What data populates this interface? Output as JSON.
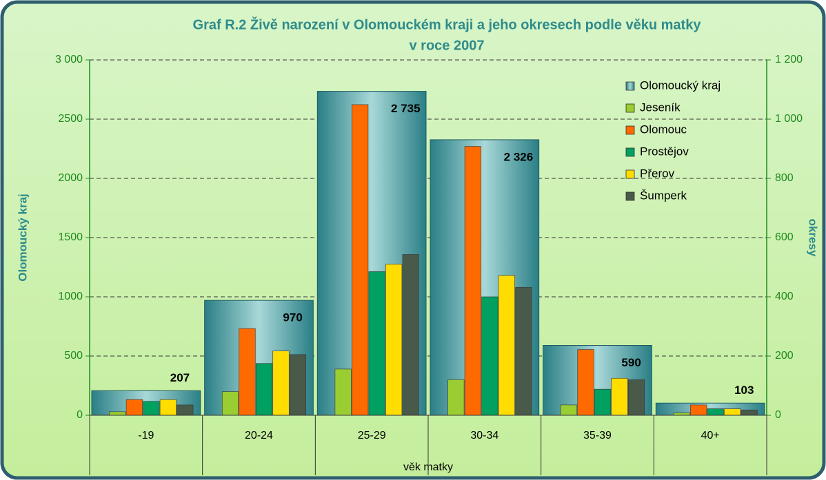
{
  "chart_data": {
    "type": "bar",
    "title": [
      "Graf R.2 Živě narození v Olomouckém kraji a jeho okresech podle věku matky",
      "v roce 2007"
    ],
    "xlabel": "věk matky",
    "ylabel": "Olomoucký kraj",
    "y2label": "okresy",
    "categories": [
      "-19",
      "20-24",
      "25-29",
      "30-34",
      "35-39",
      "40+"
    ],
    "series": [
      {
        "name": "Olomoucký kraj",
        "color": "#2e8b8b",
        "axis": "y",
        "values": [
          207,
          970,
          2735,
          2326,
          590,
          103
        ],
        "value_labels": [
          "207",
          "970",
          "2 735",
          "2 326",
          "590",
          "103"
        ]
      },
      {
        "name": "Jeseník",
        "color": "#9acd32",
        "axis": "y2",
        "values": [
          12,
          80,
          156,
          120,
          35,
          8
        ]
      },
      {
        "name": "Olomouc",
        "color": "#ff6a00",
        "axis": "y2",
        "values": [
          53,
          293,
          1049,
          908,
          222,
          35
        ]
      },
      {
        "name": "Prostějov",
        "color": "#00a060",
        "axis": "y2",
        "values": [
          47,
          175,
          485,
          400,
          88,
          22
        ]
      },
      {
        "name": "Přerov",
        "color": "#ffdd00",
        "axis": "y2",
        "values": [
          53,
          217,
          510,
          472,
          125,
          22
        ]
      },
      {
        "name": "Šumperk",
        "color": "#4a5a4a",
        "axis": "y2",
        "values": [
          35,
          205,
          543,
          432,
          120,
          18
        ]
      }
    ],
    "ylim": [
      0,
      3000
    ],
    "yticks": [
      0,
      500,
      1000,
      1500,
      2000,
      2500,
      {
        "value": 3000,
        "label": "3 000"
      }
    ],
    "y2lim": [
      0,
      1200
    ],
    "y2ticks": [
      0,
      200,
      400,
      600,
      800,
      {
        "value": 1000,
        "label": "1 000"
      },
      {
        "value": 1200,
        "label": "1 200"
      }
    ],
    "grid": true,
    "legend": "top-right"
  }
}
